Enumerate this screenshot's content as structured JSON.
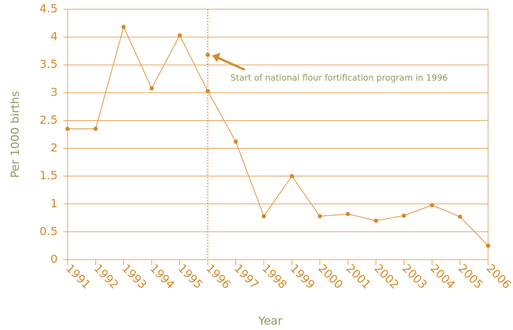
{
  "chart_data": {
    "type": "line",
    "xlabel": "Year",
    "ylabel": "Per 1000 births",
    "categories": [
      "1991",
      "1992",
      "1993",
      "1994",
      "1995",
      "1996",
      "1997",
      "1998",
      "1999",
      "2000",
      "2001",
      "2002",
      "2003",
      "2004",
      "2005",
      "2006"
    ],
    "values": [
      2.35,
      2.35,
      4.18,
      3.08,
      4.03,
      3.03,
      2.12,
      0.78,
      1.5,
      0.78,
      0.82,
      0.7,
      0.79,
      0.98,
      0.77,
      0.25
    ],
    "color": "#e3a25a",
    "marker_color": "#d4892a",
    "ylim": [
      0,
      4.5
    ],
    "yticks": [
      0,
      0.5,
      1,
      1.5,
      2,
      2.5,
      3,
      3.5,
      4,
      4.5
    ],
    "grid": true,
    "annotation": {
      "text": "Start of national flour fortification program in 1996",
      "x": "1996",
      "y": 3.68
    }
  }
}
